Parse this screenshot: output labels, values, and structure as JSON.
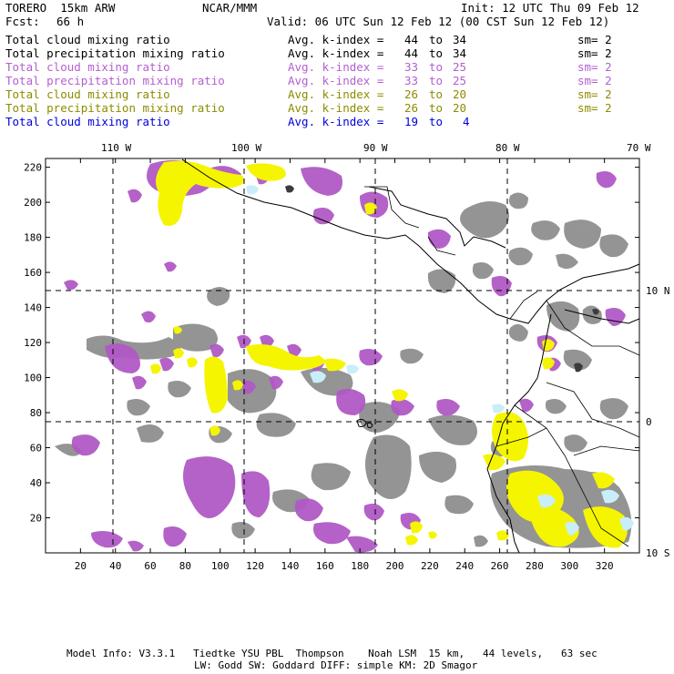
{
  "header": {
    "model_name": "TORERO  15km ARW",
    "org": "NCAR/MMM",
    "init": "Init: 12 UTC Thu 09 Feb 12",
    "fcst_label": "Fcst:",
    "fcst_value": "66 h",
    "valid": "Valid: 06 UTC Sun 12 Feb 12 (00 CST Sun 12 Feb 12)"
  },
  "fields": [
    {
      "name": "Total cloud mixing ratio",
      "kindex": "Avg. k-index = ",
      "from": "44",
      "to_label": "to",
      "to": "34",
      "sm": "sm= 2",
      "color": "black"
    },
    {
      "name": "Total precipitation mixing ratio",
      "kindex": "Avg. k-index = ",
      "from": "44",
      "to_label": "to",
      "to": "34",
      "sm": "sm= 2",
      "color": "black"
    },
    {
      "name": "Total cloud mixing ratio",
      "kindex": "Avg. k-index = ",
      "from": "33",
      "to_label": "to",
      "to": "25",
      "sm": "sm= 2",
      "color": "pink"
    },
    {
      "name": "Total precipitation mixing ratio",
      "kindex": "Avg. k-index = ",
      "from": "33",
      "to_label": "to",
      "to": "25",
      "sm": "sm= 2",
      "color": "pink"
    },
    {
      "name": "Total cloud mixing ratio",
      "kindex": "Avg. k-index = ",
      "from": "26",
      "to_label": "to",
      "to": "20",
      "sm": "sm= 2",
      "color": "olive"
    },
    {
      "name": "Total precipitation mixing ratio",
      "kindex": "Avg. k-index = ",
      "from": "26",
      "to_label": "to",
      "to": "20",
      "sm": "sm= 2",
      "color": "olive"
    },
    {
      "name": "Total cloud mixing ratio",
      "kindex": "Avg. k-index = ",
      "from": "19",
      "to_label": "to",
      "to": "4",
      "sm": "",
      "color": "blue"
    }
  ],
  "map": {
    "lon_labels": [
      "110 W",
      "100 W",
      "90 W",
      "80 W",
      "70 W"
    ],
    "lat_labels": [
      "10 N",
      "0",
      "10 S"
    ],
    "x_ticks": [
      "20",
      "40",
      "60",
      "80",
      "100",
      "120",
      "140",
      "160",
      "180",
      "200",
      "220",
      "240",
      "260",
      "280",
      "300",
      "320"
    ],
    "y_ticks": [
      "20",
      "40",
      "60",
      "80",
      "100",
      "120",
      "140",
      "160",
      "180",
      "200",
      "220"
    ],
    "colors": {
      "black_tier": "#8f8f8f",
      "pink_tier": "#b05ac6",
      "olive_tier": "#f5f500",
      "blue_tier": "#c8eefa",
      "dark_core": "#3c3c3c"
    }
  },
  "footer": {
    "line1": "Model Info: V3.3.1   Tiedtke YSU PBL  Thompson    Noah LSM  15 km,   44 levels,   63 sec",
    "line2": "LW: Godd SW: Goddard DIFF: simple KM: 2D Smagor"
  }
}
